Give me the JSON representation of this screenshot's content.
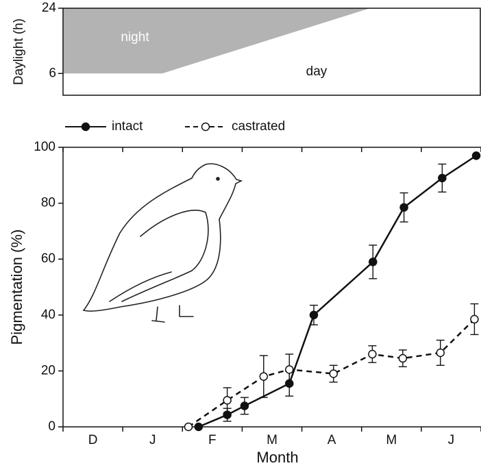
{
  "chart_data": [
    {
      "type": "daylight",
      "ylabel": "Daylight (h)",
      "ylim": [
        0,
        24
      ],
      "yticks": [
        24,
        6
      ],
      "xlim": [
        0,
        7
      ],
      "night_label": "night",
      "day_label": "day",
      "night_boundary": {
        "x": [
          0,
          0,
          1.66,
          5.14
        ],
        "y": [
          24,
          6,
          6,
          24
        ]
      },
      "color": "#b3b3b3"
    },
    {
      "type": "line",
      "xlabel": "Month",
      "ylabel": "Pigmentation (%)",
      "categories": [
        "D",
        "J",
        "F",
        "M",
        "A",
        "M",
        "J"
      ],
      "xlim": [
        0,
        7
      ],
      "xticks": [
        0,
        1,
        2,
        3,
        4,
        5,
        6,
        7
      ],
      "ylim": [
        0,
        100
      ],
      "yticks": [
        0,
        20,
        40,
        60,
        80,
        100
      ],
      "series": [
        {
          "name": "intact",
          "color": "#111111",
          "marker": "filled",
          "dashed": false,
          "x": [
            2.27,
            2.75,
            3.04,
            3.79,
            4.2,
            5.19,
            5.71,
            6.35,
            6.92
          ],
          "values": [
            0,
            4.3,
            7.5,
            15.5,
            40,
            59,
            78.5,
            89,
            97
          ],
          "errors": [
            null,
            2.3,
            3,
            4.5,
            3.5,
            6,
            5.2,
            5,
            null
          ]
        },
        {
          "name": "castrated",
          "color": "#111111",
          "marker": "open",
          "dashed": true,
          "x": [
            2.1,
            2.75,
            3.36,
            3.79,
            4.53,
            5.18,
            5.69,
            6.32,
            6.89
          ],
          "values": [
            0,
            9.5,
            18,
            20.5,
            19,
            26,
            24.5,
            26.5,
            38.5
          ],
          "errors": [
            null,
            4.5,
            7.5,
            5.5,
            3,
            3,
            3,
            4.5,
            5.5
          ]
        }
      ]
    }
  ]
}
